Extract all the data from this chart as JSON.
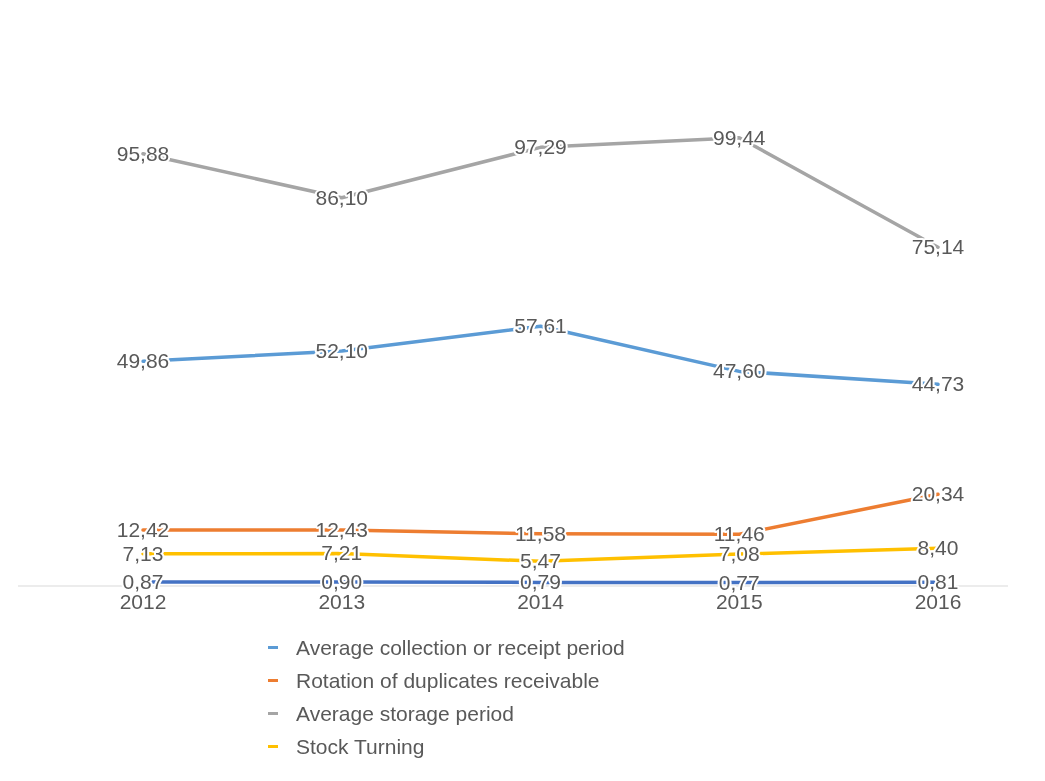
{
  "chart_data": {
    "type": "line",
    "categories": [
      "2012",
      "2013",
      "2014",
      "2015",
      "2016"
    ],
    "series": [
      {
        "name": "Average collection or receipt period",
        "color": "#5b9bd5",
        "values": [
          49.86,
          52.1,
          57.61,
          47.6,
          44.73
        ],
        "value_labels": [
          "49,86",
          "52,10",
          "57,61",
          "47,60",
          "44,73"
        ]
      },
      {
        "name": "Rotation of duplicates receivable",
        "color": "#ed7d31",
        "values": [
          12.42,
          12.43,
          11.58,
          11.46,
          20.34
        ],
        "value_labels": [
          "12,42",
          "12,43",
          "11,58",
          "11,46",
          "20,34"
        ]
      },
      {
        "name": "Average storage period",
        "color": "#a5a5a5",
        "values": [
          95.88,
          86.1,
          97.29,
          99.44,
          75.14
        ],
        "value_labels": [
          "95,88",
          "86,10",
          "97,29",
          "99,44",
          "75,14"
        ]
      },
      {
        "name": "Stock Turning",
        "color": "#ffc000",
        "values": [
          7.13,
          7.21,
          5.47,
          7.08,
          8.4
        ],
        "value_labels": [
          "7,13",
          "7,21",
          "5,47",
          "7,08",
          "8,40"
        ]
      },
      {
        "color": "#4472c4",
        "values": [
          0.87,
          0.9,
          0.79,
          0.77,
          0.81
        ],
        "value_labels": [
          "0,87",
          "0,90",
          "0,79",
          "0,77",
          "0,81"
        ]
      }
    ],
    "legend": "bottom",
    "marker": "none",
    "line_style": "solid"
  }
}
